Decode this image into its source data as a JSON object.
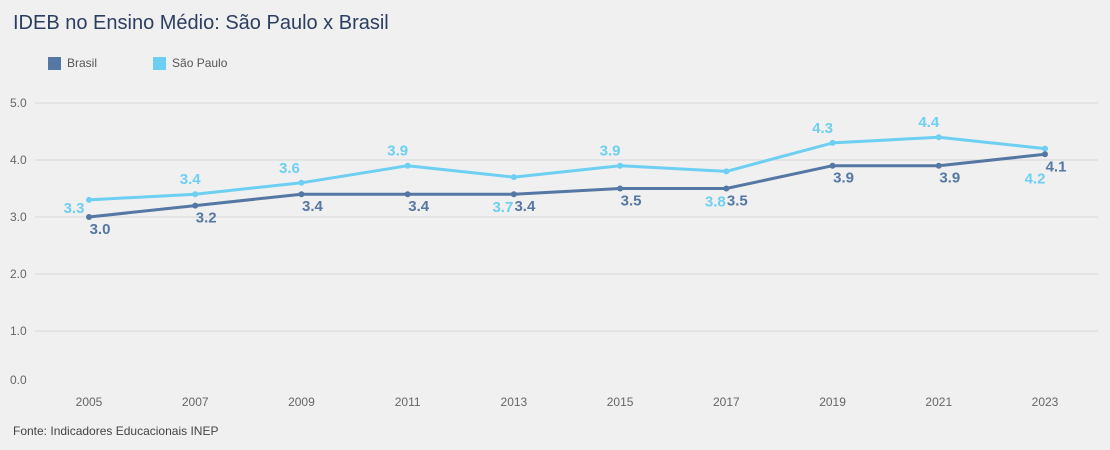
{
  "title": "IDEB no Ensino Médio: São Paulo x Brasil",
  "source": "Fonte: Indicadores Educacionais INEP",
  "colors": {
    "brasil": "#5577a3",
    "sao_paulo": "#6dcff2",
    "grid": "#d9d9d9",
    "background": "#f0f0f0"
  },
  "chart_data": {
    "type": "line",
    "title": "IDEB no Ensino Médio: São Paulo x Brasil",
    "xlabel": "",
    "ylabel": "",
    "categories": [
      "2005",
      "2007",
      "2009",
      "2011",
      "2013",
      "2015",
      "2017",
      "2019",
      "2021",
      "2023"
    ],
    "ylim": [
      0,
      5
    ],
    "y_ticks": [
      "0.0",
      "1.0",
      "2.0",
      "3.0",
      "4.0",
      "5.0"
    ],
    "grid": true,
    "legend_position": "top-left",
    "series": [
      {
        "name": "Brasil",
        "color": "#5577a3",
        "values": [
          3.0,
          3.2,
          3.4,
          3.4,
          3.4,
          3.5,
          3.5,
          3.9,
          3.9,
          4.1
        ],
        "labels": [
          "3.0",
          "3.2",
          "3.4",
          "3.4",
          "3.4",
          "3.5",
          "3.5",
          "3.9",
          "3.9",
          "4.1"
        ]
      },
      {
        "name": "São Paulo",
        "color": "#6dcff2",
        "values": [
          3.3,
          3.4,
          3.6,
          3.9,
          3.7,
          3.9,
          3.8,
          4.3,
          4.4,
          4.2
        ],
        "labels": [
          "3.3",
          "3.4",
          "3.6",
          "3.9",
          "3.7",
          "3.9",
          "3.8",
          "4.3",
          "4.4",
          "4.2"
        ]
      }
    ]
  }
}
